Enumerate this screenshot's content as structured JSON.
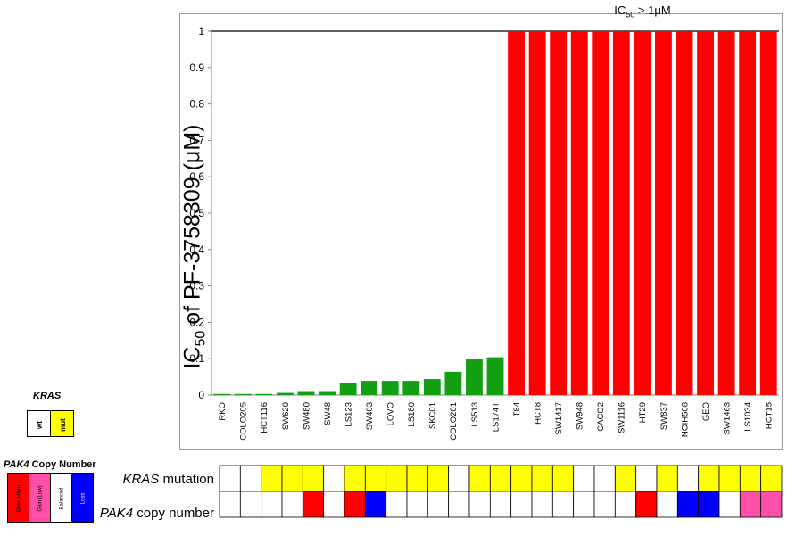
{
  "colors": {
    "sensitive": "#12a012",
    "resistant": "#ff0000",
    "kras_wt": "#ffffff",
    "kras_mut": "#ffff00",
    "pak4_gain_high": "#ff0000",
    "pak4_gain_low": "#ff4fa8",
    "pak4_balanced": "#ffffff",
    "pak4_loss": "#0000ff"
  },
  "annotation": {
    "prefix": "IC",
    "subscript": "50",
    "suffix": " > 1μM"
  },
  "y_axis_title": {
    "prefix": "IC",
    "subscript": "50",
    "suffix": " of PF-3758309 (μM)"
  },
  "chart_data": {
    "type": "bar",
    "ylim": [
      0,
      1
    ],
    "yticks": [
      "0",
      "0.1",
      "0.2",
      "0.3",
      "0.4",
      "0.5",
      "0.6",
      "0.7",
      "0.8",
      "0.9",
      "1"
    ],
    "categories": [
      "RKO",
      "COLO205",
      "HCT116",
      "SW620",
      "SW480",
      "SW48",
      "LS123",
      "SW403",
      "LOVO",
      "LS180",
      "SKC01",
      "COLO201",
      "LS513",
      "LS174T",
      "T84",
      "HCT8",
      "SW1417",
      "SW948",
      "CACO2",
      "SW1116",
      "HT29",
      "SW837",
      "NCIH508",
      "GEO",
      "SW1463",
      "LS1034",
      "HCT15"
    ],
    "values": [
      0.003,
      0.003,
      0.003,
      0.006,
      0.011,
      0.011,
      0.032,
      0.039,
      0.039,
      0.039,
      0.044,
      0.064,
      0.099,
      0.104,
      1,
      1,
      1,
      1,
      1,
      1,
      1,
      1,
      1,
      1,
      1,
      1,
      1
    ],
    "bar_colors": [
      "sensitive",
      "sensitive",
      "sensitive",
      "sensitive",
      "sensitive",
      "sensitive",
      "sensitive",
      "sensitive",
      "sensitive",
      "sensitive",
      "sensitive",
      "sensitive",
      "sensitive",
      "sensitive",
      "resistant",
      "resistant",
      "resistant",
      "resistant",
      "resistant",
      "resistant",
      "resistant",
      "resistant",
      "resistant",
      "resistant",
      "resistant",
      "resistant",
      "resistant"
    ],
    "kras_mutation": [
      "wt",
      "wt",
      "mut",
      "mut",
      "mut",
      "wt",
      "mut",
      "mut",
      "mut",
      "mut",
      "mut",
      "wt",
      "mut",
      "mut",
      "mut",
      "mut",
      "mut",
      "wt",
      "wt",
      "mut",
      "wt",
      "mut",
      "wt",
      "mut",
      "mut",
      "mut",
      "mut"
    ],
    "pak4_copy_number": [
      "balanced",
      "balanced",
      "balanced",
      "balanced",
      "gain_high",
      "balanced",
      "gain_high",
      "loss",
      "balanced",
      "balanced",
      "balanced",
      "balanced",
      "balanced",
      "balanced",
      "balanced",
      "balanced",
      "balanced",
      "balanced",
      "balanced",
      "balanced",
      "gain_high",
      "balanced",
      "loss",
      "loss",
      "balanced",
      "gain_low",
      "gain_low"
    ]
  },
  "kras_legend": {
    "title": "KRAS",
    "wt_label": "wt",
    "mut_label": "mut"
  },
  "pak4_legend": {
    "title_gene": "PAK4",
    "title_rest": " Copy Number",
    "gain_high_label": "Gain (High)",
    "gain_low_label": "Gain (Low)",
    "balanced_label": "Balanced",
    "loss_label": "Loss"
  },
  "track_labels": {
    "kras_gene": "KRAS",
    "kras_rest": " mutation",
    "pak4_gene": "PAK4",
    "pak4_rest": " copy number"
  }
}
